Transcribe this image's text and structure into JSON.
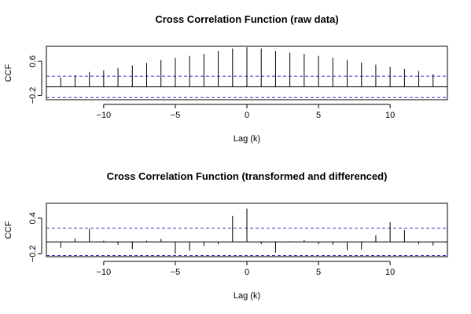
{
  "chart_data": [
    {
      "type": "bar",
      "title": "Cross Correlation Function (raw data)",
      "xlabel": "Lag (k)",
      "ylabel": "CCF",
      "xticks": [
        -10,
        -5,
        0,
        5,
        10
      ],
      "xtick_labels": [
        "−10",
        "−5",
        "0",
        "5",
        "10"
      ],
      "yticks": [
        -0.2,
        0.6
      ],
      "ytick_labels": [
        "−0.2",
        "0.6"
      ],
      "xlim": [
        -14,
        14
      ],
      "ylim": [
        -0.3,
        0.95
      ],
      "ci": 0.25,
      "ci_color": "#3232c8",
      "lags": [
        -13,
        -12,
        -11,
        -10,
        -9,
        -8,
        -7,
        -6,
        -5,
        -4,
        -3,
        -2,
        -1,
        0,
        1,
        2,
        3,
        4,
        5,
        6,
        7,
        8,
        9,
        10,
        11,
        12,
        13
      ],
      "values": [
        0.22,
        0.27,
        0.35,
        0.39,
        0.44,
        0.5,
        0.56,
        0.63,
        0.68,
        0.73,
        0.77,
        0.84,
        0.9,
        0.93,
        0.9,
        0.84,
        0.8,
        0.77,
        0.73,
        0.68,
        0.63,
        0.57,
        0.52,
        0.47,
        0.42,
        0.37,
        0.3
      ]
    },
    {
      "type": "bar",
      "title": "Cross Correlation Function (transformed and differenced)",
      "xlabel": "Lag (k)",
      "ylabel": "CCF",
      "xticks": [
        -10,
        -5,
        0,
        5,
        10
      ],
      "xtick_labels": [
        "−10",
        "−5",
        "0",
        "5",
        "10"
      ],
      "yticks": [
        -0.2,
        0.4
      ],
      "ytick_labels": [
        "−0.2",
        "0.4"
      ],
      "xlim": [
        -14,
        14
      ],
      "ylim": [
        -0.25,
        0.65
      ],
      "ci": 0.23,
      "ci_color": "#3232c8",
      "lags": [
        -13,
        -12,
        -11,
        -10,
        -9,
        -8,
        -7,
        -6,
        -5,
        -4,
        -3,
        -2,
        -1,
        0,
        1,
        2,
        3,
        4,
        5,
        6,
        7,
        8,
        9,
        10,
        11,
        12,
        13
      ],
      "values": [
        -0.1,
        0.06,
        0.22,
        0.02,
        -0.05,
        -0.12,
        0.02,
        0.05,
        -0.2,
        -0.15,
        -0.07,
        -0.04,
        0.44,
        0.56,
        -0.04,
        -0.18,
        0.01,
        0.03,
        -0.04,
        -0.05,
        -0.14,
        -0.13,
        0.11,
        0.33,
        0.2,
        -0.04,
        -0.06
      ]
    }
  ]
}
